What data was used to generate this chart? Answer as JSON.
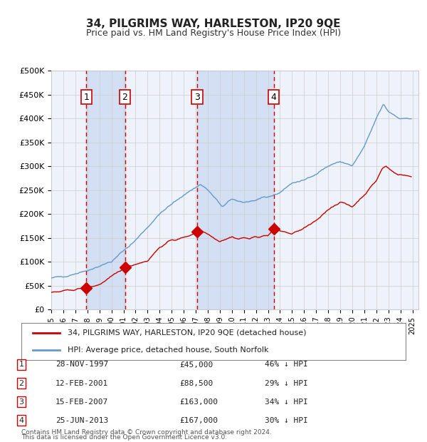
{
  "title": "34, PILGRIMS WAY, HARLESTON, IP20 9QE",
  "subtitle": "Price paid vs. HM Land Registry's House Price Index (HPI)",
  "legend_line1": "34, PILGRIMS WAY, HARLESTON, IP20 9QE (detached house)",
  "legend_line2": "HPI: Average price, detached house, South Norfolk",
  "footer1": "Contains HM Land Registry data © Crown copyright and database right 2024.",
  "footer2": "This data is licensed under the Open Government Licence v3.0.",
  "sales": [
    {
      "num": 1,
      "date": "28-NOV-1997",
      "price": 45000,
      "hpi_diff": "46% ↓ HPI",
      "x_year": 1997.91
    },
    {
      "num": 2,
      "date": "12-FEB-2001",
      "price": 88500,
      "hpi_diff": "29% ↓ HPI",
      "x_year": 2001.12
    },
    {
      "num": 3,
      "date": "15-FEB-2007",
      "price": 163000,
      "hpi_diff": "34% ↓ HPI",
      "x_year": 2007.12
    },
    {
      "num": 4,
      "date": "25-JUN-2013",
      "price": 167000,
      "hpi_diff": "30% ↓ HPI",
      "x_year": 2013.48
    }
  ],
  "hpi_color": "#6699cc",
  "price_color": "#cc0000",
  "background_color": "#ffffff",
  "chart_bg": "#eef2fa",
  "grid_color": "#cccccc",
  "vline_color": "#cc0000",
  "shade_color": "#c8d8f0",
  "ylim": [
    0,
    500000
  ],
  "xlim_start": 1995.0,
  "xlim_end": 2025.5
}
